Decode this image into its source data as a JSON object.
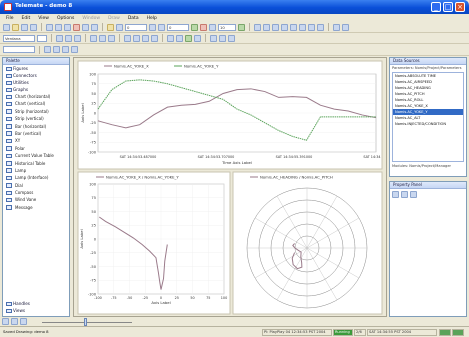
{
  "window": {
    "title": "Telemate - demo 8"
  },
  "menu": [
    {
      "label": "File",
      "dim": false
    },
    {
      "label": "Edit",
      "dim": false
    },
    {
      "label": "View",
      "dim": false
    },
    {
      "label": "Options",
      "dim": false
    },
    {
      "label": "Window",
      "dim": true
    },
    {
      "label": "Draw",
      "dim": true
    },
    {
      "label": "Data",
      "dim": false
    },
    {
      "label": "Help",
      "dim": false
    }
  ],
  "toolbar": {
    "zoom_value": "0",
    "zoom2_value": "0",
    "time_value": "10",
    "font_value": "Verdana"
  },
  "left_panel": {
    "title": "Palette",
    "sections": [
      {
        "label": "Figures"
      },
      {
        "label": "Connectors"
      },
      {
        "label": "Utilities"
      },
      {
        "label": "Graphs"
      }
    ],
    "items": [
      {
        "label": "Chart (horizontal)"
      },
      {
        "label": "Chart (vertical)"
      },
      {
        "label": "Strip (horizontal)"
      },
      {
        "label": "Strip (vertical)"
      },
      {
        "label": "Bar (horizontal)"
      },
      {
        "label": "Bar (vertical)"
      },
      {
        "label": "XY"
      },
      {
        "label": "Polar"
      },
      {
        "label": "Current Value Table"
      },
      {
        "label": "Historical Table"
      },
      {
        "label": "Lamp"
      },
      {
        "label": "Lamp (Interface)"
      },
      {
        "label": "Dial"
      },
      {
        "label": "Compass"
      },
      {
        "label": "Wind Vane"
      },
      {
        "label": "Message"
      }
    ],
    "bottom_sections": [
      {
        "label": "Handles"
      },
      {
        "label": "Views"
      }
    ]
  },
  "chart_data": [
    {
      "type": "line",
      "legend": [
        "Nomis.AC_YOKE_X",
        "Nomis.AC_YOKE_Y"
      ],
      "ylabel": "Axis Label",
      "xlabel": "Time Axis Label",
      "ylim": [
        -100,
        100
      ],
      "yticks": [
        "100",
        "75",
        "50",
        "25",
        "0",
        "-25",
        "-50",
        "-75",
        "-100"
      ],
      "xticks": [
        "SAT 14:34:53.487000",
        "SAT 14:34:53.707000",
        "SAT 14:34:55.391000",
        "SAT 14:34"
      ],
      "series": [
        {
          "name": "Nomis.AC_YOKE_X",
          "x": [
            0,
            0.05,
            0.1,
            0.15,
            0.2,
            0.25,
            0.3,
            0.35,
            0.4,
            0.45,
            0.5,
            0.55,
            0.6,
            0.65,
            0.7,
            0.75,
            0.8,
            0.85,
            0.9,
            0.95,
            1.0
          ],
          "values": [
            -20,
            -30,
            -38,
            -30,
            -5,
            15,
            20,
            22,
            30,
            50,
            60,
            62,
            55,
            40,
            42,
            40,
            20,
            10,
            5,
            -5,
            -12
          ]
        },
        {
          "name": "Nomis.AC_YOKE_Y",
          "x": [
            0,
            0.05,
            0.1,
            0.15,
            0.2,
            0.25,
            0.3,
            0.35,
            0.4,
            0.45,
            0.5,
            0.55,
            0.6,
            0.65,
            0.7,
            0.75,
            0.8,
            0.85,
            0.9,
            0.95,
            1.0
          ],
          "values": [
            10,
            60,
            82,
            85,
            82,
            75,
            65,
            55,
            45,
            35,
            10,
            -5,
            -25,
            -45,
            -60,
            -70,
            -10,
            -10,
            -10,
            -10,
            -10
          ]
        }
      ]
    },
    {
      "type": "scatter",
      "legend": [
        "Nomis.AC_YOKE_X / Nomis.AC_YOKE_Y"
      ],
      "ylabel": "Axis Label",
      "xlabel": "Axis Label",
      "xlim": [
        -100,
        100
      ],
      "ylim": [
        -100,
        100
      ],
      "xticks": [
        "-100",
        "-75",
        "-50",
        "-25",
        "0",
        "25",
        "50",
        "75",
        "100"
      ],
      "yticks": [
        "100",
        "75",
        "50",
        "25",
        "0",
        "-25",
        "-50",
        "-75",
        "-100"
      ],
      "series": [
        {
          "name": "Nomis.AC_YOKE_X / Nomis.AC_YOKE_Y",
          "x": [
            -98,
            -88,
            -72,
            -58,
            -44,
            -30,
            -18,
            -8,
            -6,
            -4,
            -2,
            0,
            4,
            6,
            10
          ],
          "values": [
            40,
            32,
            22,
            12,
            2,
            -10,
            -22,
            -34,
            -48,
            -62,
            -78,
            -92,
            -72,
            -40,
            -10
          ]
        }
      ]
    },
    {
      "type": "polar",
      "legend": [
        "Nomis.AC_HEADING / Nomis.AC_PITCH"
      ],
      "rings": 5,
      "series": [
        {
          "name": "Nomis.AC_HEADING / Nomis.AC_PITCH"
        }
      ]
    }
  ],
  "right_panel": {
    "data_sources_title": "Data Sources",
    "data_sources_header": "Parameters: Nomis/Project/Parameters",
    "data_sources": [
      {
        "label": "Nomis.ABSOLUTE TIME",
        "selected": false
      },
      {
        "label": "Nomis.AC_AIRSPEED",
        "selected": false
      },
      {
        "label": "Nomis.AC_HEADING",
        "selected": false
      },
      {
        "label": "Nomis.AC_PITCH",
        "selected": false
      },
      {
        "label": "Nomis.AC_ROLL",
        "selected": false
      },
      {
        "label": "Nomis.AC_YOKE_X",
        "selected": false
      },
      {
        "label": "Nomis.AC_YOKE_Y",
        "selected": true
      },
      {
        "label": "Nomis.AC_ALT",
        "selected": false
      },
      {
        "label": "Nomis.INJECTED/CONDITION",
        "selected": false
      }
    ],
    "modules_label": "Modules: Nomis/Project/Manager",
    "property_title": "Property Panel"
  },
  "status": {
    "left": "Saved Drawing: demo 8",
    "segments": [
      "Pl: PlayPlay 04 12:34:53 PST 2004",
      "Running",
      "2/6",
      "SAT 14:34:55 PST 2004"
    ],
    "running_color": "#3a9a3a"
  },
  "colors": {
    "series1": "#9a7a8a",
    "series2": "#5aa35a",
    "accent": "#0a4fd8"
  }
}
